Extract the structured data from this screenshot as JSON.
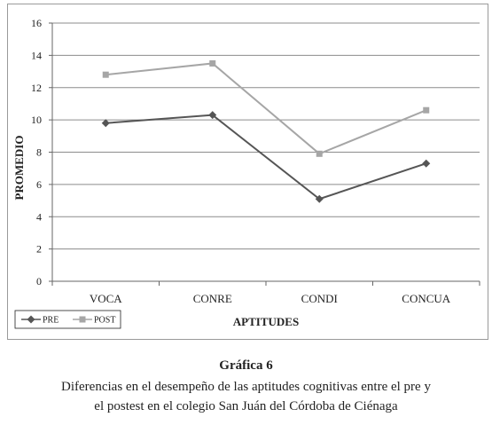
{
  "chart_data": {
    "type": "line",
    "categories": [
      "VOCA",
      "CONRE",
      "CONDI",
      "CONCUA"
    ],
    "series": [
      {
        "name": "PRE",
        "values": [
          9.8,
          10.3,
          5.1,
          7.3
        ],
        "color": "#555555",
        "marker": "diamond"
      },
      {
        "name": "POST",
        "values": [
          12.8,
          13.5,
          7.9,
          10.6
        ],
        "color": "#a6a6a6",
        "marker": "square"
      }
    ],
    "xlabel": "APTITUDES",
    "ylabel": "PROMEDIO",
    "ylim": [
      0,
      16
    ],
    "yticks": [
      "0",
      "2",
      "4",
      "6",
      "8",
      "10",
      "12",
      "14",
      "16"
    ],
    "grid": true,
    "legend_position": "bottom-left"
  },
  "caption": {
    "title": "Gráfica 6",
    "line1": "Diferencias en el desempeño de las aptitudes cognitivas entre el pre y",
    "line2": "el postest en el colegio San Juán del Córdoba de Ciénaga"
  }
}
